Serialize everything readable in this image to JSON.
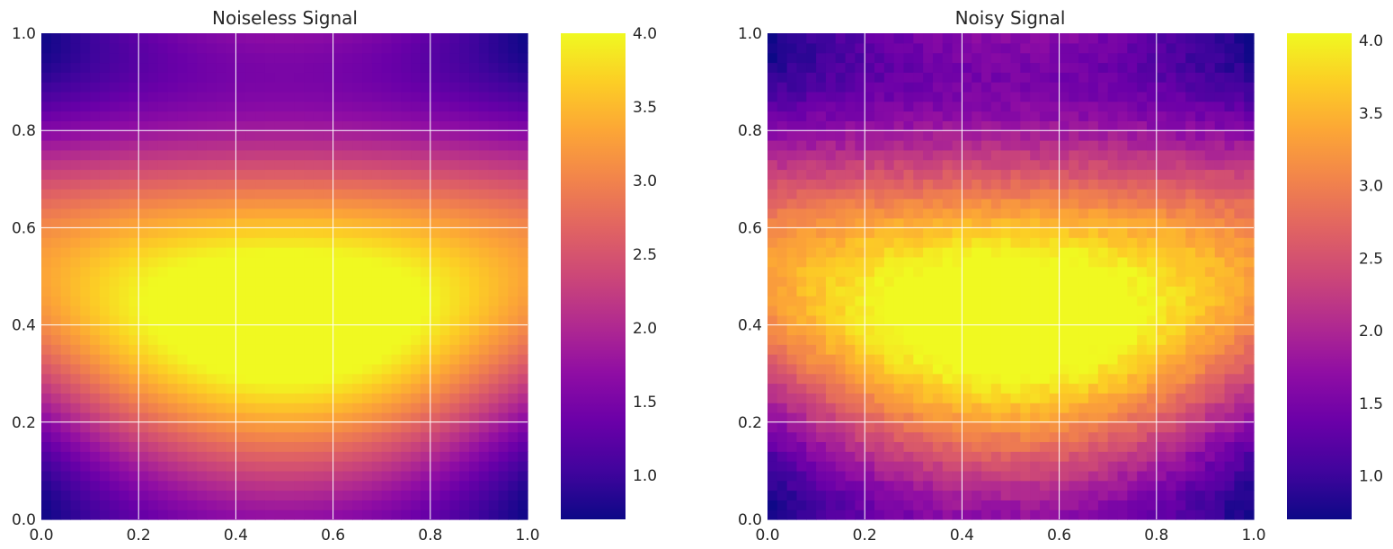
{
  "chart_data": [
    {
      "type": "heatmap",
      "title": "Noiseless Signal",
      "xlabel": "",
      "ylabel": "",
      "xlim": [
        0,
        1
      ],
      "ylim": [
        0,
        1
      ],
      "x_ticks": [
        "0.0",
        "0.2",
        "0.4",
        "0.6",
        "0.8",
        "1.0"
      ],
      "y_ticks": [
        "0.0",
        "0.2",
        "0.4",
        "0.6",
        "0.8",
        "1.0"
      ],
      "grid": true,
      "colormap": "plasma",
      "grid_resolution": 50,
      "noisy": false,
      "value_range": [
        0.7,
        4.0
      ],
      "function_estimate": "z = 2 - 1.3*cos(2*pi*y) + sin(pi*x)*(1 + 0.75*sin(2*pi*y)) (approx. reading of the plot)",
      "colorbar": {
        "range": [
          0.7,
          4.0
        ],
        "ticks": [
          1.0,
          1.5,
          2.0,
          2.5,
          3.0,
          3.5,
          4.0
        ],
        "tick_labels": [
          "1.0",
          "1.5",
          "2.0",
          "2.5",
          "3.0",
          "3.5",
          "4.0"
        ]
      }
    },
    {
      "type": "heatmap",
      "title": "Noisy Signal",
      "xlabel": "",
      "ylabel": "",
      "xlim": [
        0,
        1
      ],
      "ylim": [
        0,
        1
      ],
      "x_ticks": [
        "0.0",
        "0.2",
        "0.4",
        "0.6",
        "0.8",
        "1.0"
      ],
      "y_ticks": [
        "0.0",
        "0.2",
        "0.4",
        "0.6",
        "0.8",
        "1.0"
      ],
      "grid": true,
      "colormap": "plasma",
      "grid_resolution": 50,
      "noisy": true,
      "value_range": [
        0.7,
        4.05
      ],
      "function_estimate": "noiseless signal plus small random noise",
      "colorbar": {
        "range": [
          0.7,
          4.05
        ],
        "ticks": [
          1.0,
          1.5,
          2.0,
          2.5,
          3.0,
          3.5,
          4.0
        ],
        "tick_labels": [
          "1.0",
          "1.5",
          "2.0",
          "2.5",
          "3.0",
          "3.5",
          "4.0"
        ]
      }
    }
  ]
}
